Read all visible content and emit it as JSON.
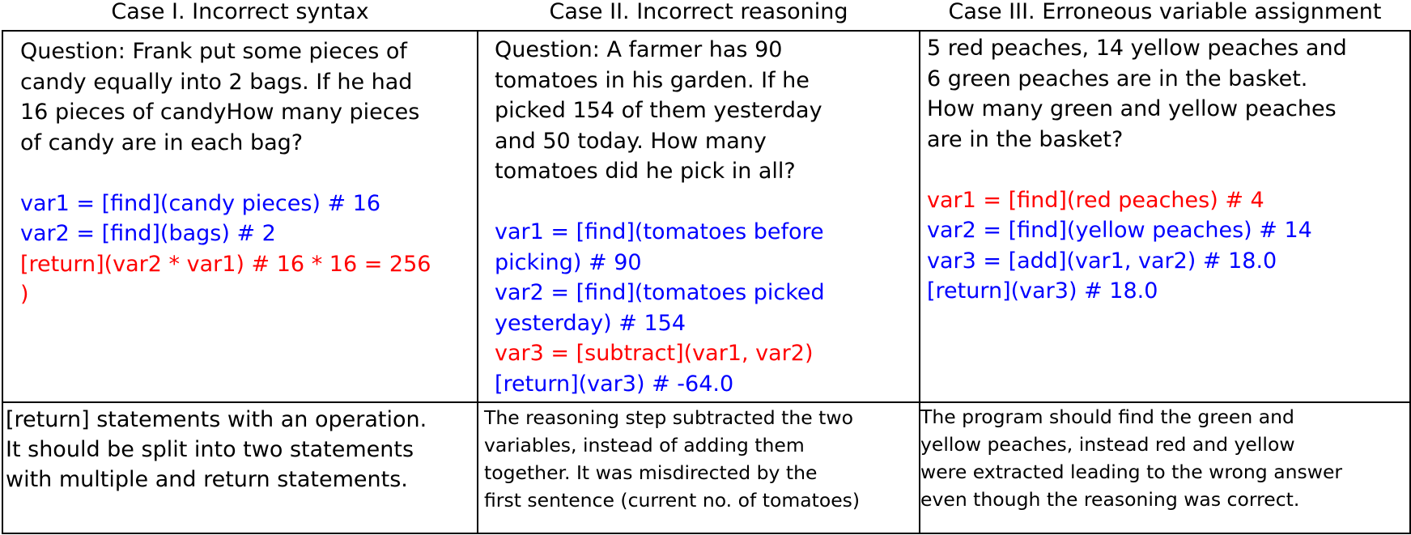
{
  "cases": [
    {
      "title": "Case I. Incorrect syntax",
      "question": [
        "Question: Frank put some pieces of",
        "candy equally into 2 bags. If he had",
        "16 pieces of candyHow many pieces",
        "of candy are in each bag?"
      ],
      "code": [
        {
          "text": "var1 = [find](candy pieces) # 16",
          "color": "#0000ff"
        },
        {
          "text": "var2 = [find](bags) # 2",
          "color": "#0000ff"
        },
        {
          "text": "[return](var2 * var1) # 16 * 16 = 256",
          "color": "#ff0000"
        },
        {
          "text": ")",
          "color": "#ff0000"
        }
      ],
      "explanation": [
        "[return] statements with an operation.",
        "It should be split into two statements",
        "with multiple and return statements."
      ]
    },
    {
      "title": "Case II. Incorrect reasoning",
      "question": [
        "Question: A farmer has 90",
        "tomatoes in his garden. If he",
        "picked 154 of them yesterday",
        "and 50 today. How many",
        "tomatoes did he pick in all?"
      ],
      "code": [
        {
          "text": "var1 = [find](tomatoes before",
          "color": "#0000ff"
        },
        {
          "text": "picking) # 90",
          "color": "#0000ff"
        },
        {
          "text": "var2 = [find](tomatoes picked",
          "color": "#0000ff"
        },
        {
          "text": "yesterday) # 154",
          "color": "#0000ff"
        },
        {
          "text": "var3 = [subtract](var1, var2)",
          "color": "#ff0000"
        },
        {
          "text": "[return](var3) # -64.0",
          "color": "#0000ff"
        }
      ],
      "explanation": [
        "The reasoning step subtracted the two",
        "variables, instead of adding them",
        "together. It was misdirected by the",
        "first sentence (current no. of tomatoes)"
      ]
    },
    {
      "title": "Case III. Erroneous variable assignment",
      "question": [
        "5 red peaches, 14 yellow peaches and",
        "6 green peaches are in the basket.",
        "How many green and yellow peaches",
        "are in the basket?"
      ],
      "code": [
        {
          "text": "var1 = [find](red peaches) # 4",
          "color": "#ff0000"
        },
        {
          "text": "var2 = [find](yellow peaches) # 14",
          "color": "#0000ff"
        },
        {
          "text": "var3 = [add](var1, var2) # 18.0",
          "color": "#0000ff"
        },
        {
          "text": "[return](var3) # 18.0",
          "color": "#0000ff"
        }
      ],
      "explanation": [
        "The program should find the green and",
        "yellow peaches, instead red and yellow",
        "were extracted leading to the wrong answer",
        "even though the reasoning was correct."
      ]
    }
  ]
}
